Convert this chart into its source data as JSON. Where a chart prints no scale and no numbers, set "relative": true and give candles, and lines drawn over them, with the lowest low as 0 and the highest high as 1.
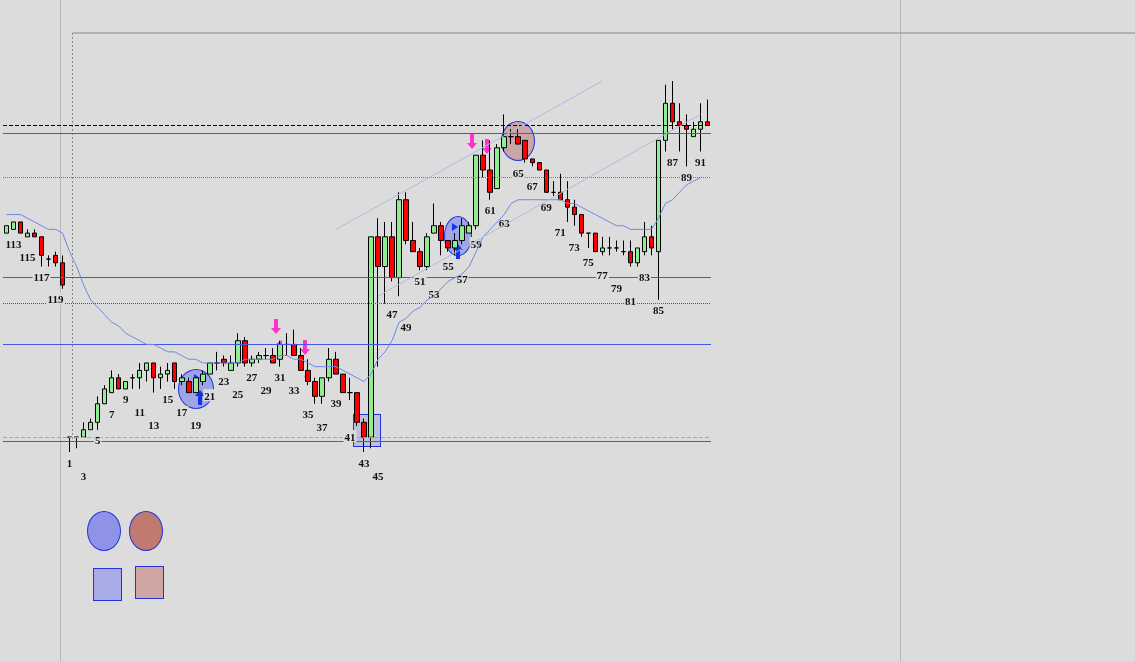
{
  "chart_data": {
    "type": "candlestick",
    "relative": true,
    "categories": [
      null,
      "113",
      null,
      "115",
      null,
      "117",
      null,
      "119",
      null,
      "1",
      null,
      "3",
      null,
      "5",
      null,
      "7",
      null,
      "9",
      null,
      "11",
      null,
      "13",
      null,
      "15",
      null,
      "17",
      null,
      "19",
      null,
      "21",
      null,
      "23",
      null,
      "25",
      null,
      "27",
      null,
      "29",
      null,
      "31",
      null,
      "33",
      null,
      "35",
      null,
      "37",
      null,
      "39",
      null,
      "41",
      null,
      "43",
      null,
      "45",
      null,
      "47",
      null,
      "49",
      null,
      "51",
      null,
      "53",
      null,
      "55",
      null,
      "57",
      null,
      "59",
      null,
      "61",
      null,
      "63",
      null,
      "65",
      null,
      "67",
      null,
      "69",
      null,
      "71",
      null,
      "73",
      null,
      "75",
      null,
      "77",
      null,
      "79",
      null,
      "81",
      null,
      "83",
      null,
      "85",
      null,
      "87",
      null,
      "89",
      null,
      "91",
      null
    ],
    "ohlc": [
      [
        0.59,
        0.61,
        0.59,
        0.61
      ],
      [
        0.6,
        0.62,
        0.6,
        0.62
      ],
      [
        0.62,
        0.62,
        0.59,
        0.59
      ],
      [
        0.58,
        0.6,
        0.58,
        0.59
      ],
      [
        0.59,
        0.6,
        0.58,
        0.58
      ],
      [
        0.58,
        0.58,
        0.5,
        0.53
      ],
      [
        0.52,
        0.53,
        0.5,
        0.52
      ],
      [
        0.53,
        0.54,
        0.5,
        0.51
      ],
      [
        0.51,
        0.53,
        0.44,
        0.45
      ],
      [
        0.04,
        0.04,
        0,
        0.04
      ],
      [
        0.04,
        0.04,
        0.01,
        0.04
      ],
      [
        0.04,
        0.08,
        0.04,
        0.06
      ],
      [
        0.06,
        0.09,
        0.06,
        0.08
      ],
      [
        0.08,
        0.15,
        0.06,
        0.13
      ],
      [
        0.13,
        0.18,
        0.13,
        0.17
      ],
      [
        0.16,
        0.22,
        0.16,
        0.2
      ],
      [
        0.2,
        0.21,
        0.17,
        0.17
      ],
      [
        0.17,
        0.19,
        0.17,
        0.19
      ],
      [
        0.2,
        0.21,
        0.17,
        0.2
      ],
      [
        0.2,
        0.24,
        0.17,
        0.22
      ],
      [
        0.22,
        0.24,
        0.19,
        0.24
      ],
      [
        0.24,
        0.24,
        0.16,
        0.2
      ],
      [
        0.2,
        0.23,
        0.17,
        0.21
      ],
      [
        0.21,
        0.24,
        0.19,
        0.22
      ],
      [
        0.24,
        0.24,
        0.17,
        0.19
      ],
      [
        0.19,
        0.21,
        0.18,
        0.2
      ],
      [
        0.19,
        0.2,
        0.16,
        0.16
      ],
      [
        0.16,
        0.2,
        0.16,
        0.2
      ],
      [
        0.19,
        0.22,
        0.18,
        0.21
      ],
      [
        0.21,
        0.24,
        0.21,
        0.24
      ],
      [
        0.24,
        0.27,
        0.22,
        0.24
      ],
      [
        0.25,
        0.26,
        0.23,
        0.24
      ],
      [
        0.22,
        0.26,
        0.22,
        0.24
      ],
      [
        0.24,
        0.32,
        0.23,
        0.3
      ],
      [
        0.3,
        0.31,
        0.23,
        0.24
      ],
      [
        0.24,
        0.26,
        0.23,
        0.25
      ],
      [
        0.25,
        0.27,
        0.24,
        0.26
      ],
      [
        0.26,
        0.28,
        0.25,
        0.26
      ],
      [
        0.26,
        0.28,
        0.24,
        0.24
      ],
      [
        0.25,
        0.3,
        0.23,
        0.29
      ],
      [
        0.29,
        0.32,
        0.26,
        0.29
      ],
      [
        0.29,
        0.33,
        0.26,
        0.26
      ],
      [
        0.26,
        0.28,
        0.22,
        0.22
      ],
      [
        0.22,
        0.25,
        0.18,
        0.19
      ],
      [
        0.19,
        0.2,
        0.13,
        0.15
      ],
      [
        0.15,
        0.2,
        0.13,
        0.2
      ],
      [
        0.2,
        0.28,
        0.19,
        0.25
      ],
      [
        0.25,
        0.27,
        0.21,
        0.21
      ],
      [
        0.21,
        0.21,
        0.16,
        0.16
      ],
      [
        0.16,
        0.2,
        0.14,
        0.16
      ],
      [
        0.16,
        0.16,
        0.07,
        0.08
      ],
      [
        0.08,
        0.09,
        0,
        0.04
      ],
      [
        0.04,
        0.58,
        0.01,
        0.58
      ],
      [
        0.58,
        0.63,
        0.23,
        0.5
      ],
      [
        0.5,
        0.62,
        0.4,
        0.58
      ],
      [
        0.58,
        0.62,
        0.46,
        0.47
      ],
      [
        0.47,
        0.7,
        0.42,
        0.68
      ],
      [
        0.68,
        0.7,
        0.56,
        0.57
      ],
      [
        0.57,
        0.62,
        0.54,
        0.54
      ],
      [
        0.54,
        0.55,
        0.49,
        0.5
      ],
      [
        0.5,
        0.59,
        0.49,
        0.58
      ],
      [
        0.59,
        0.67,
        0.59,
        0.61
      ],
      [
        0.61,
        0.62,
        0.53,
        0.57
      ],
      [
        0.57,
        0.57,
        0.54,
        0.55
      ],
      [
        0.55,
        0.59,
        0.53,
        0.57
      ],
      [
        0.57,
        0.63,
        0.56,
        0.61
      ],
      [
        0.59,
        0.62,
        0.59,
        0.61
      ],
      [
        0.61,
        0.8,
        0.6,
        0.8
      ],
      [
        0.8,
        0.84,
        0.74,
        0.76
      ],
      [
        0.76,
        0.84,
        0.68,
        0.7
      ],
      [
        0.71,
        0.83,
        0.71,
        0.82
      ],
      [
        0.82,
        0.91,
        0.81,
        0.85
      ],
      [
        0.85,
        0.87,
        0.83,
        0.85
      ],
      [
        0.85,
        0.87,
        0.83,
        0.83
      ],
      [
        0.84,
        0.84,
        0.78,
        0.79
      ],
      [
        0.79,
        0.79,
        0.77,
        0.78
      ],
      [
        0.78,
        0.78,
        0.76,
        0.76
      ],
      [
        0.76,
        0.76,
        0.7,
        0.7
      ],
      [
        0.7,
        0.73,
        0.69,
        0.7
      ],
      [
        0.7,
        0.75,
        0.68,
        0.68
      ],
      [
        0.68,
        0.73,
        0.62,
        0.66
      ],
      [
        0.66,
        0.68,
        0.61,
        0.64
      ],
      [
        0.64,
        0.64,
        0.58,
        0.59
      ],
      [
        0.59,
        0.59,
        0.55,
        0.59
      ],
      [
        0.59,
        0.59,
        0.54,
        0.54
      ],
      [
        0.54,
        0.58,
        0.53,
        0.55
      ],
      [
        0.55,
        0.58,
        0.53,
        0.55
      ],
      [
        0.55,
        0.57,
        0.54,
        0.55
      ],
      [
        0.54,
        0.57,
        0.53,
        0.54
      ],
      [
        0.54,
        0.57,
        0.5,
        0.51
      ],
      [
        0.51,
        0.55,
        0.5,
        0.55
      ],
      [
        0.54,
        0.62,
        0.53,
        0.58
      ],
      [
        0.58,
        0.61,
        0.53,
        0.55
      ],
      [
        0.54,
        0.84,
        0.41,
        0.84
      ],
      [
        0.84,
        0.99,
        0.81,
        0.94
      ],
      [
        0.94,
        1.0,
        0.87,
        0.89
      ],
      [
        0.89,
        0.94,
        0.81,
        0.88
      ],
      [
        0.88,
        0.91,
        0.77,
        0.87
      ],
      [
        0.85,
        0.89,
        0.85,
        0.87
      ],
      [
        0.87,
        0.94,
        0.81,
        0.89
      ],
      [
        0.89,
        0.95,
        0.88,
        0.88
      ]
    ],
    "series": [
      {
        "type": "line",
        "color": "#6f86e8",
        "values": [
          0.64,
          0.64,
          0.64,
          0.63,
          0.62,
          0.61,
          0.6,
          0.6,
          0.59,
          0.54,
          0.5,
          0.45,
          0.41,
          0.39,
          0.37,
          0.35,
          0.34,
          0.32,
          0.31,
          0.3,
          0.29,
          0.29,
          0.28,
          0.27,
          0.27,
          0.26,
          0.25,
          0.25,
          0.24,
          0.24,
          0.24,
          0.24,
          0.24,
          0.24,
          0.25,
          0.25,
          0.25,
          0.25,
          0.25,
          0.26,
          0.26,
          0.25,
          0.25,
          0.24,
          0.23,
          0.23,
          0.23,
          0.23,
          0.22,
          0.21,
          0.2,
          0.19,
          0.21,
          0.25,
          0.27,
          0.3,
          0.35,
          0.36,
          0.38,
          0.39,
          0.41,
          0.42,
          0.44,
          0.46,
          0.47,
          0.48,
          0.5,
          0.54,
          0.58,
          0.6,
          0.62,
          0.64,
          0.67,
          0.68,
          0.68,
          0.68,
          0.68,
          0.68,
          0.68,
          0.68,
          0.67,
          0.67,
          0.66,
          0.65,
          0.64,
          0.63,
          0.62,
          0.61,
          0.61,
          0.6,
          0.6,
          0.6,
          0.6,
          0.63,
          0.67,
          0.68,
          0.7,
          0.72,
          0.73,
          0.74,
          null
        ]
      },
      {
        "type": "line",
        "color": "#a9bde0",
        "x": [
          "39",
          "77"
        ],
        "values": [
          0.6,
          1.0
        ]
      },
      {
        "type": "line",
        "color": "#a9bde0",
        "x": [
          "45",
          "91"
        ],
        "values": [
          0.42,
          0.91
        ]
      }
    ],
    "ref_lines": [
      {
        "axis": "y",
        "value": 0.88,
        "color": "#000000",
        "line_style": "dashed"
      },
      {
        "axis": "y",
        "value": 0.86,
        "color": "#4455ee",
        "line_style": "solid"
      },
      {
        "axis": "y",
        "value": 0.74,
        "color": "#33aa33",
        "line_style": "dotted"
      },
      {
        "axis": "y",
        "value": 0.47,
        "color": "#4455ee",
        "line_style": "solid"
      },
      {
        "axis": "y",
        "value": 0.4,
        "color": "#cc2222",
        "line_style": "dotted"
      },
      {
        "axis": "y",
        "value": 0.29,
        "color": "#4455ee",
        "line_style": "solid"
      },
      {
        "axis": "y",
        "value": 0.04,
        "color": "#e8a020",
        "line_style": "dashed"
      },
      {
        "axis": "y",
        "value": 0.03,
        "color": "#4455ee",
        "line_style": "solid"
      }
    ]
  }
}
